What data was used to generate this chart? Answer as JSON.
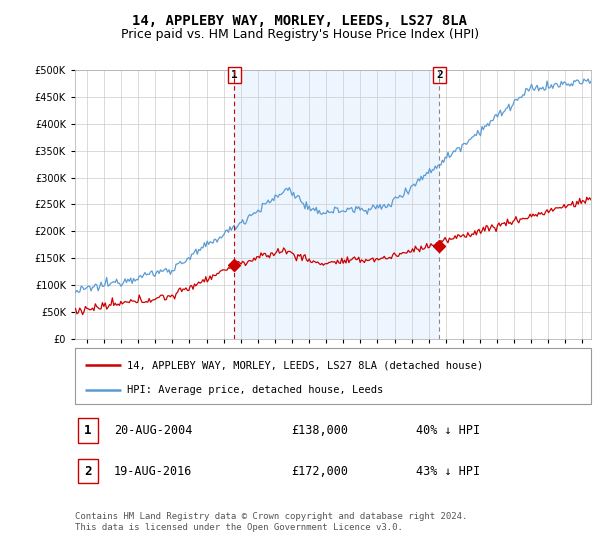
{
  "title": "14, APPLEBY WAY, MORLEY, LEEDS, LS27 8LA",
  "subtitle": "Price paid vs. HM Land Registry's House Price Index (HPI)",
  "hpi_label": "HPI: Average price, detached house, Leeds",
  "property_label": "14, APPLEBY WAY, MORLEY, LEEDS, LS27 8LA (detached house)",
  "hpi_color": "#5b9bd5",
  "hpi_fill_color": "#ddeeff",
  "property_color": "#cc0000",
  "vline1_color": "#cc0000",
  "vline2_color": "#888888",
  "marker1_date_x": 2004.63,
  "marker1_price": 138000,
  "marker1_label": "20-AUG-2004",
  "marker1_pct": "40% ↓ HPI",
  "marker2_date_x": 2016.63,
  "marker2_price": 172000,
  "marker2_label": "19-AUG-2016",
  "marker2_pct": "43% ↓ HPI",
  "ylim": [
    0,
    500000
  ],
  "xlim_left": 1995.3,
  "xlim_right": 2025.5,
  "footnote": "Contains HM Land Registry data © Crown copyright and database right 2024.\nThis data is licensed under the Open Government Licence v3.0.",
  "background_color": "#ffffff",
  "grid_color": "#cccccc",
  "title_fontsize": 10,
  "subtitle_fontsize": 9,
  "tick_fontsize": 7
}
